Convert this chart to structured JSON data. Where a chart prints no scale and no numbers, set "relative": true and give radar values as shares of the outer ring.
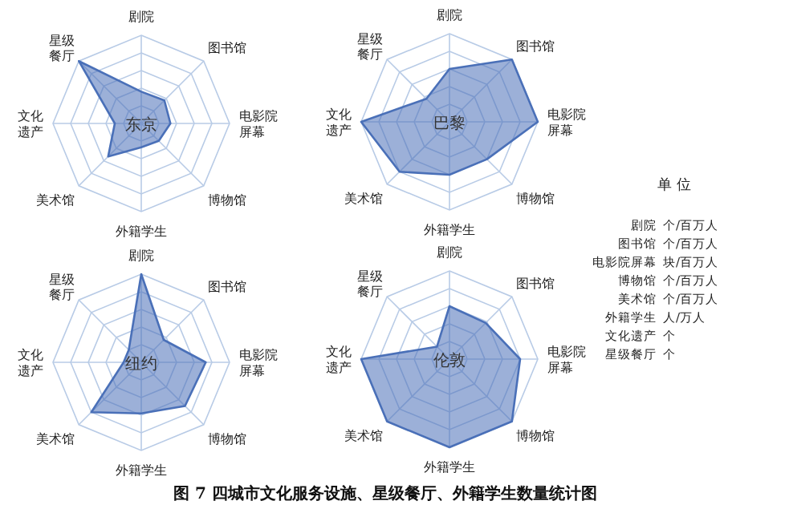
{
  "chart_data": [
    {
      "type": "radar",
      "title": "东京",
      "relative": true,
      "categories": [
        "剧院",
        "图书馆",
        "电影院屏幕",
        "博物馆",
        "外籍学生",
        "美术馆",
        "文化遗产",
        "星级餐厅"
      ],
      "series": [
        {
          "color": "#4a70b8",
          "values": [
            0.36,
            0.37,
            0.33,
            0.28,
            0.27,
            0.53,
            0.3,
            1.0
          ]
        }
      ]
    },
    {
      "type": "radar",
      "title": "巴黎",
      "relative": true,
      "categories": [
        "剧院",
        "图书馆",
        "电影院屏幕",
        "博物馆",
        "外籍学生",
        "美术馆",
        "文化遗产",
        "星级餐厅"
      ],
      "series": [
        {
          "color": "#4a70b8",
          "values": [
            0.6,
            1.0,
            1.0,
            0.6,
            0.6,
            0.8,
            1.0,
            0.37
          ]
        }
      ]
    },
    {
      "type": "radar",
      "title": "纽约",
      "relative": true,
      "categories": [
        "剧院",
        "图书馆",
        "电影院屏幕",
        "博物馆",
        "外籍学生",
        "美术馆",
        "文化遗产",
        "星级餐厅"
      ],
      "series": [
        {
          "color": "#4a70b8",
          "values": [
            1.0,
            0.36,
            0.73,
            0.7,
            0.58,
            0.8,
            0.2,
            0.2
          ]
        }
      ]
    },
    {
      "type": "radar",
      "title": "伦敦",
      "relative": true,
      "categories": [
        "剧院",
        "图书馆",
        "电影院屏幕",
        "博物馆",
        "外籍学生",
        "美术馆",
        "文化遗产",
        "星级餐厅"
      ],
      "series": [
        {
          "color": "#4a70b8",
          "values": [
            0.6,
            0.58,
            0.8,
            1.0,
            1.0,
            1.0,
            1.0,
            0.2
          ]
        }
      ]
    },
    {
      "type": "other",
      "title": "单 位",
      "annotations": [
        "剧院 个/百万人",
        "图书馆 个/百万人",
        "电影院屏幕 块/百万人",
        "博物馆 个/百万人",
        "美术馆 个/百万人",
        "外籍学生 人/万人",
        "文化遗产 个",
        "星级餐厅 个"
      ]
    },
    {
      "type": "other",
      "title": "图 7 四城市文化服务设施、星级餐厅、外籍学生数量统计图"
    }
  ]
}
